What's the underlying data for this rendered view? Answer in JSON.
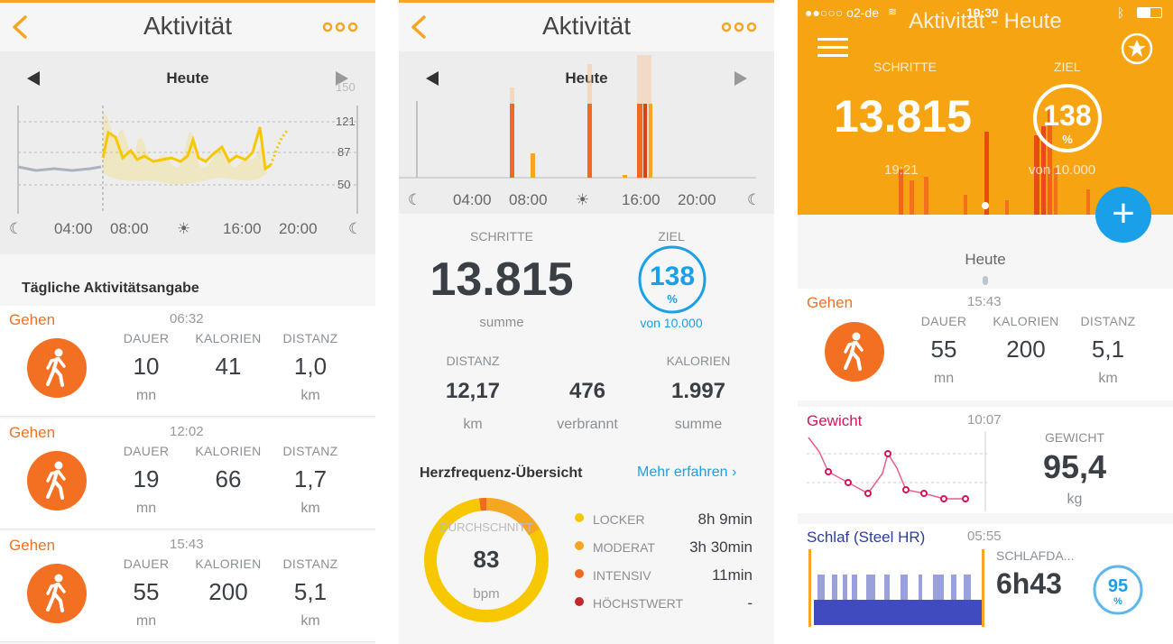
{
  "colors": {
    "accent": "#f5a623",
    "walk": "#f36f21",
    "blue": "#1aa0e8",
    "yellow": "#f7c800"
  },
  "panel1": {
    "title": "Aktivität",
    "day": "Heute",
    "y_ticks": [
      "150",
      "121",
      "87",
      "50"
    ],
    "x_ticks": [
      "04:00",
      "08:00",
      "16:00",
      "20:00"
    ],
    "section_title": "Tägliche Aktivitätsangabe",
    "activities": [
      {
        "type": "Gehen",
        "time": "06:32",
        "dauer": "10",
        "kalorien": "41",
        "distanz": "1,0"
      },
      {
        "type": "Gehen",
        "time": "12:02",
        "dauer": "19",
        "kalorien": "66",
        "distanz": "1,7"
      },
      {
        "type": "Gehen",
        "time": "15:43",
        "dauer": "55",
        "kalorien": "200",
        "distanz": "5,1"
      }
    ],
    "col_labels": {
      "dauer": "DAUER",
      "kalorien": "KALORIEN",
      "distanz": "DISTANZ"
    },
    "units": {
      "dauer": "mn",
      "distanz": "km"
    }
  },
  "panel2": {
    "title": "Aktivität",
    "day": "Heute",
    "x_ticks": [
      "04:00",
      "08:00",
      "16:00",
      "20:00"
    ],
    "steps_label": "SCHRITTE",
    "steps_value": "13.815",
    "steps_sub": "summe",
    "goal_label": "ZIEL",
    "goal_value": "138",
    "goal_pct": "%",
    "goal_sub": "von 10.000",
    "goal_fraction": 1.0,
    "stats": [
      {
        "label": "DISTANZ",
        "value": "12,17",
        "unit": "km"
      },
      {
        "label": "",
        "value": "476",
        "unit": "verbrannt"
      },
      {
        "label": "KALORIEN",
        "value": "1.997",
        "unit": "summe"
      }
    ],
    "heart_title": "Herzfrequenz-Übersicht",
    "heart_link": "Mehr erfahren",
    "avg_label": "DURCHSCHNITT",
    "avg_value": "83",
    "avg_unit": "bpm",
    "zones": [
      {
        "label": "LOCKER",
        "value": "8h 9min",
        "color": "#f7c800"
      },
      {
        "label": "MODERAT",
        "value": "3h 30min",
        "color": "#f5a623"
      },
      {
        "label": "INTENSIV",
        "value": "11min",
        "color": "#f06a22"
      },
      {
        "label": "HÖCHSTWERT",
        "value": "-",
        "color": "#c0282b"
      }
    ]
  },
  "panel3": {
    "status_left": "●●○○○ o2-de",
    "status_time": "19:30",
    "title": "Aktivität - Heute",
    "steps_label": "SCHRITTE",
    "steps_value": "13.815",
    "goal_label": "ZIEL",
    "goal_value": "138",
    "goal_pct": "%",
    "time_label": "19:21",
    "goal_sub": "von 10.000",
    "fab": "+",
    "day": "Heute",
    "walk": {
      "type": "Gehen",
      "time": "15:43",
      "dauer": "55",
      "kalorien": "200",
      "distanz": "5,1"
    },
    "col_labels": {
      "dauer": "DAUER",
      "kalorien": "KALORIEN",
      "distanz": "DISTANZ"
    },
    "units": {
      "dauer": "mn",
      "distanz": "km"
    },
    "weight": {
      "type": "Gewicht",
      "time": "10:07",
      "label": "GEWICHT",
      "value": "95,4",
      "unit": "kg"
    },
    "sleep": {
      "type": "Schlaf (Steel HR)",
      "time": "05:55",
      "label": "SCHLAFDA...",
      "value": "6h43",
      "score": "95",
      "score_unit": "%"
    }
  }
}
